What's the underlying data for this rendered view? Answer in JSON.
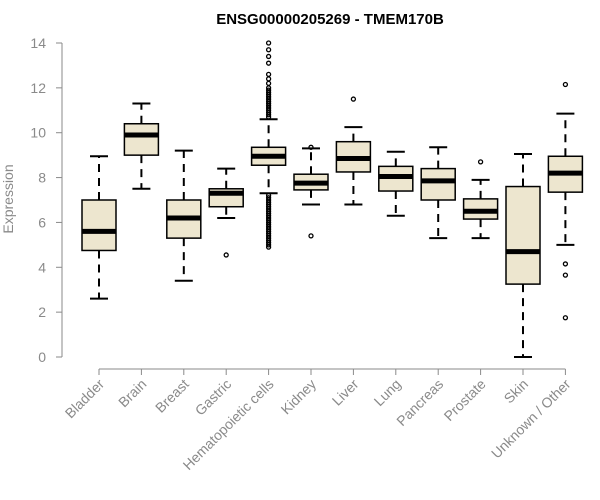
{
  "chart_data": {
    "type": "boxplot",
    "title": "ENSG00000205269 - TMEM170B",
    "xlabel": "",
    "ylabel": "Expression",
    "ylim": [
      0,
      14
    ],
    "yticks": [
      0,
      2,
      4,
      6,
      8,
      10,
      12,
      14
    ],
    "grid": false,
    "legend": "none",
    "box_fill": "#ede6cf",
    "categories": [
      "Bladder",
      "Brain",
      "Breast",
      "Gastric",
      "Hematopoietic cells",
      "Kidney",
      "Liver",
      "Lung",
      "Pancreas",
      "Prostate",
      "Skin",
      "Unknown / Other"
    ],
    "boxes": [
      {
        "label": "Bladder",
        "whisker_low": 2.6,
        "q1": 4.75,
        "median": 5.6,
        "q3": 7.0,
        "whisker_high": 8.95,
        "outliers": []
      },
      {
        "label": "Brain",
        "whisker_low": 7.5,
        "q1": 9.0,
        "median": 9.9,
        "q3": 10.4,
        "whisker_high": 11.3,
        "outliers": []
      },
      {
        "label": "Breast",
        "whisker_low": 3.4,
        "q1": 5.3,
        "median": 6.2,
        "q3": 7.0,
        "whisker_high": 9.2,
        "outliers": []
      },
      {
        "label": "Gastric",
        "whisker_low": 6.2,
        "q1": 6.7,
        "median": 7.3,
        "q3": 7.5,
        "whisker_high": 8.4,
        "outliers": [
          4.55
        ]
      },
      {
        "label": "Hematopoietic cells",
        "whisker_low": 7.3,
        "q1": 8.55,
        "median": 8.95,
        "q3": 9.35,
        "whisker_high": 10.6,
        "outliers": [
          4.9,
          5.0,
          5.1,
          5.2,
          5.3,
          5.4,
          5.5,
          5.6,
          5.7,
          5.8,
          5.9,
          6.0,
          6.1,
          6.2,
          6.3,
          6.4,
          6.5,
          6.6,
          6.7,
          6.8,
          6.9,
          7.0,
          7.1,
          7.2,
          10.7,
          10.8,
          10.9,
          11.0,
          11.1,
          11.2,
          11.3,
          11.4,
          11.5,
          11.6,
          11.7,
          11.8,
          11.9,
          12.0,
          12.2,
          12.4,
          12.6,
          13.1,
          13.4,
          13.7,
          14.0
        ]
      },
      {
        "label": "Kidney",
        "whisker_low": 6.8,
        "q1": 7.45,
        "median": 7.75,
        "q3": 8.15,
        "whisker_high": 9.3,
        "outliers": [
          5.4,
          9.35
        ]
      },
      {
        "label": "Liver",
        "whisker_low": 6.8,
        "q1": 8.25,
        "median": 8.85,
        "q3": 9.6,
        "whisker_high": 10.25,
        "outliers": [
          11.5
        ]
      },
      {
        "label": "Lung",
        "whisker_low": 6.3,
        "q1": 7.4,
        "median": 8.05,
        "q3": 8.5,
        "whisker_high": 9.15,
        "outliers": []
      },
      {
        "label": "Pancreas",
        "whisker_low": 5.3,
        "q1": 7.0,
        "median": 7.85,
        "q3": 8.4,
        "whisker_high": 9.35,
        "outliers": []
      },
      {
        "label": "Prostate",
        "whisker_low": 5.3,
        "q1": 6.15,
        "median": 6.5,
        "q3": 7.05,
        "whisker_high": 7.9,
        "outliers": [
          8.7
        ]
      },
      {
        "label": "Skin",
        "whisker_low": 0.0,
        "q1": 3.25,
        "median": 4.7,
        "q3": 7.6,
        "whisker_high": 9.05,
        "outliers": []
      },
      {
        "label": "Unknown / Other",
        "whisker_low": 5.0,
        "q1": 7.35,
        "median": 8.2,
        "q3": 8.95,
        "whisker_high": 10.85,
        "outliers": [
          1.75,
          3.65,
          4.15,
          12.15
        ]
      }
    ]
  }
}
